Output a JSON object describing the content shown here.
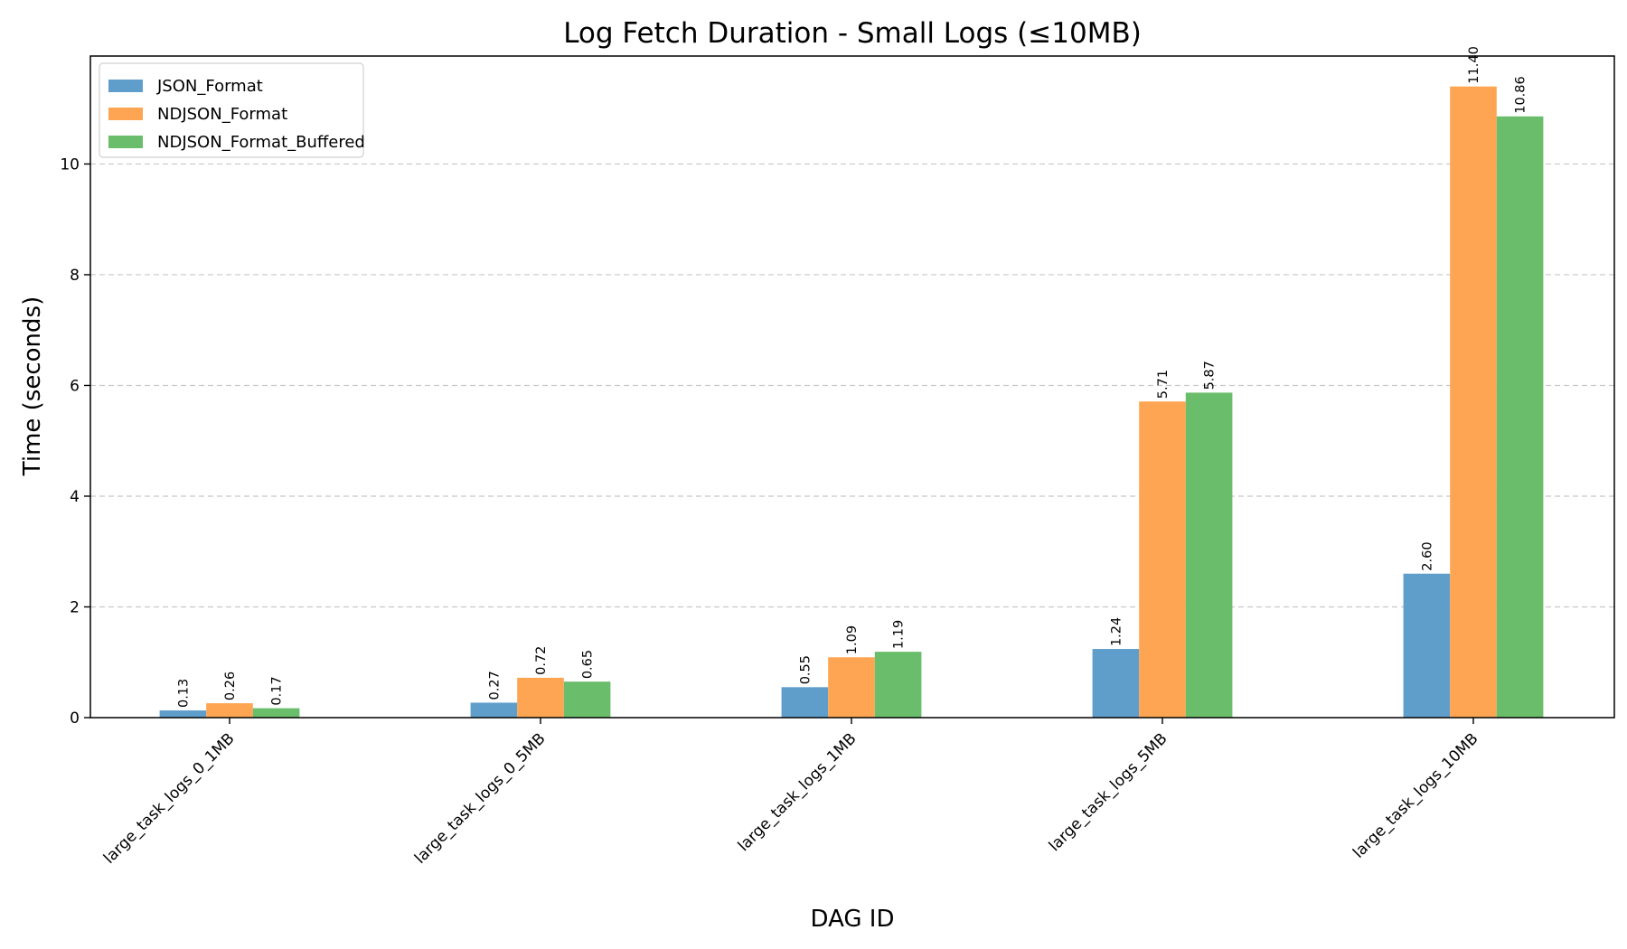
{
  "chart_data": {
    "type": "bar",
    "title": "Log Fetch Duration - Small Logs (≤10MB)",
    "xlabel": "DAG ID",
    "ylabel": "Time (seconds)",
    "ylim": [
      0,
      11.95
    ],
    "yticks": [
      0,
      2,
      4,
      6,
      8,
      10
    ],
    "grid": "y-dashed",
    "legend_position": "top-left",
    "categories": [
      "large_task_logs_0_1MB",
      "large_task_logs_0_5MB",
      "large_task_logs_1MB",
      "large_task_logs_5MB",
      "large_task_logs_10MB"
    ],
    "series": [
      {
        "name": "JSON_Format",
        "color": "#5f9ecb",
        "values": [
          0.13,
          0.27,
          0.55,
          1.24,
          2.6
        ],
        "labels": [
          "0.13",
          "0.27",
          "0.55",
          "1.24",
          "2.60"
        ]
      },
      {
        "name": "NDJSON_Format",
        "color": "#fda552",
        "values": [
          0.26,
          0.72,
          1.09,
          5.71,
          11.4
        ],
        "labels": [
          "0.26",
          "0.72",
          "1.09",
          "5.71",
          "11.40"
        ]
      },
      {
        "name": "NDJSON_Format_Buffered",
        "color": "#6abd6a",
        "values": [
          0.17,
          0.65,
          1.19,
          5.87,
          10.86
        ],
        "labels": [
          "0.17",
          "0.65",
          "1.19",
          "5.87",
          "10.86"
        ]
      }
    ]
  }
}
